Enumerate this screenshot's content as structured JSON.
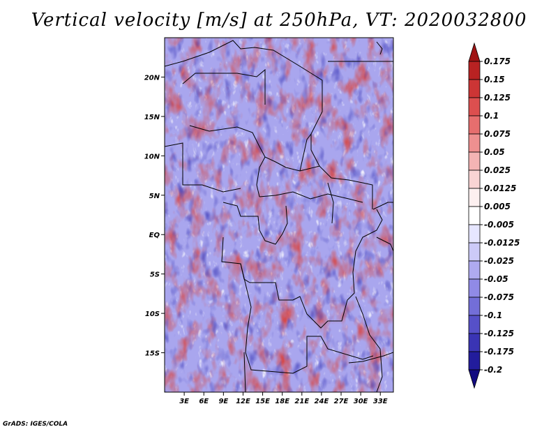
{
  "title": "Vertical velocity [m/s] at 250hPa, VT: 2020032800",
  "footer": "GrADS: IGES/COLA",
  "map": {
    "x_ticks": [
      "3E",
      "6E",
      "9E",
      "12E",
      "15E",
      "18E",
      "21E",
      "24E",
      "27E",
      "30E",
      "33E"
    ],
    "y_ticks": [
      "20N",
      "15N",
      "10N",
      "5N",
      "EQ",
      "5S",
      "10S",
      "15S"
    ],
    "lon_range": [
      0,
      35
    ],
    "lat_range": [
      -20,
      25
    ]
  },
  "colorbar": {
    "labels": [
      "0.175",
      "0.15",
      "0.125",
      "0.1",
      "0.075",
      "0.05",
      "0.025",
      "0.0125",
      "0.005",
      "-0.005",
      "-0.0125",
      "-0.025",
      "-0.05",
      "-0.075",
      "-0.1",
      "-0.125",
      "-0.175",
      "-0.2"
    ],
    "colors": [
      "#a01414",
      "#b82222",
      "#cc3535",
      "#dc4f4f",
      "#e66e6e",
      "#ee9090",
      "#f4b4b4",
      "#f9d4d4",
      "#fdf0f0",
      "#ffffff",
      "#e6e6ff",
      "#cccaf8",
      "#afaaf0",
      "#908ae6",
      "#736ed8",
      "#5650c8",
      "#3a34b4",
      "#221c9c",
      "#120a80"
    ]
  }
}
